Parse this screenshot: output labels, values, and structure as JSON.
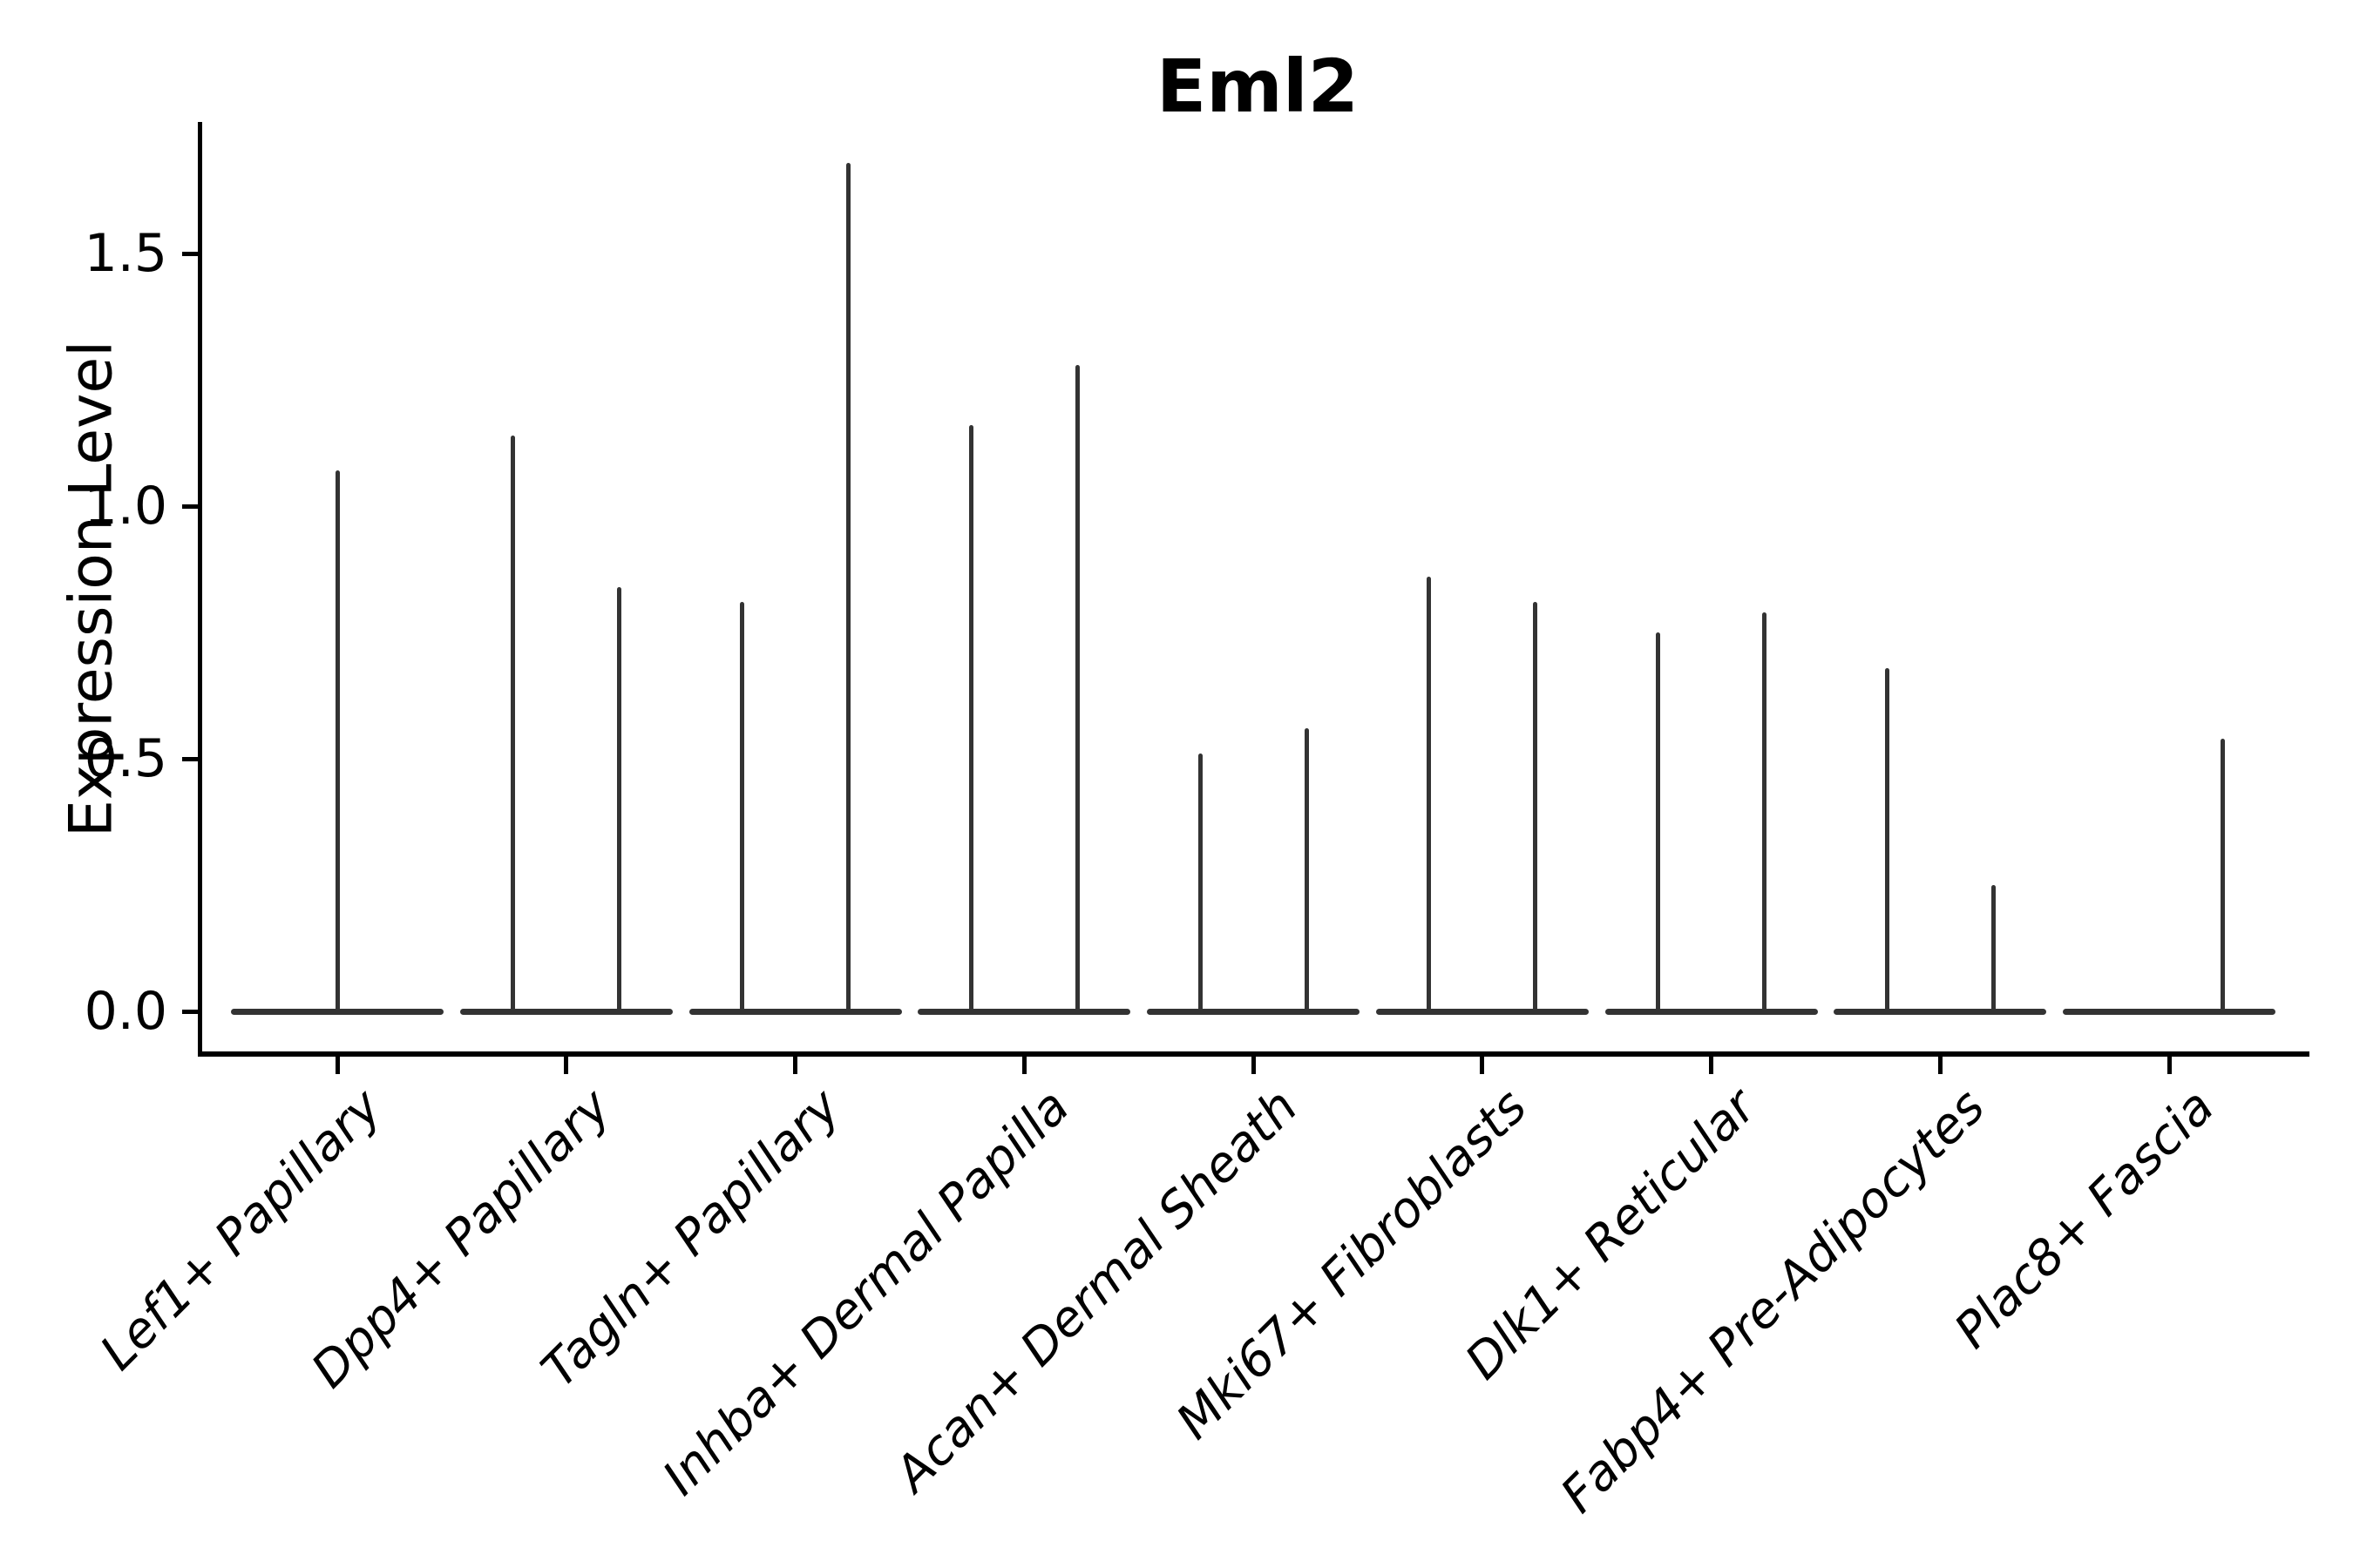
{
  "title": "Eml2",
  "y_axis": {
    "label": "Expression Level",
    "tick_labels": [
      "0.0",
      "0.5",
      "1.0",
      "1.5"
    ],
    "tick_values": [
      0.0,
      0.5,
      1.0,
      1.5
    ]
  },
  "chart_data": {
    "type": "violin",
    "title": "Eml2",
    "xlabel": "",
    "ylabel": "Expression Level",
    "ylim": [
      0,
      1.76
    ],
    "yticks": [
      0.0,
      0.5,
      1.0,
      1.5
    ],
    "grid": false,
    "legend": "none",
    "x_tick_rotation_deg": 45,
    "x_tick_style": "italic",
    "violin_shape": "thin spike with flat wide base at 0",
    "categories": [
      "Lef1+ Papillary",
      "Dpp4+ Papillary",
      "Tagln+ Papillary",
      "Inhba+ Dermal Papilla",
      "Acan+ Dermal Sheath",
      "Mki67+ Fibroblasts",
      "Dlk1+ Reticular",
      "Fabp4+ Pre-Adipocytes",
      "Plac8+ Fascia"
    ],
    "groups": [
      {
        "category": "Lef1+ Papillary",
        "violins": [
          {
            "position": "center",
            "max_expression": 1.07
          }
        ]
      },
      {
        "category": "Dpp4+ Papillary",
        "violins": [
          {
            "position": "left",
            "max_expression": 1.14
          },
          {
            "position": "right",
            "max_expression": 0.84
          }
        ]
      },
      {
        "category": "Tagln+ Papillary",
        "violins": [
          {
            "position": "left",
            "max_expression": 0.81
          },
          {
            "position": "right",
            "max_expression": 1.68
          }
        ]
      },
      {
        "category": "Inhba+ Dermal Papilla",
        "violins": [
          {
            "position": "left",
            "max_expression": 1.16
          },
          {
            "position": "right",
            "max_expression": 1.28
          }
        ]
      },
      {
        "category": "Acan+ Dermal Sheath",
        "violins": [
          {
            "position": "left",
            "max_expression": 0.51
          },
          {
            "position": "right",
            "max_expression": 0.56
          }
        ]
      },
      {
        "category": "Mki67+ Fibroblasts",
        "violins": [
          {
            "position": "left",
            "max_expression": 0.86
          },
          {
            "position": "right",
            "max_expression": 0.81
          }
        ]
      },
      {
        "category": "Dlk1+ Reticular",
        "violins": [
          {
            "position": "left",
            "max_expression": 0.75
          },
          {
            "position": "right",
            "max_expression": 0.79
          }
        ]
      },
      {
        "category": "Fabp4+ Pre-Adipocytes",
        "violins": [
          {
            "position": "left",
            "max_expression": 0.68
          },
          {
            "position": "right",
            "max_expression": 0.25
          }
        ]
      },
      {
        "category": "Plac8+ Fascia",
        "violins": [
          {
            "position": "left",
            "max_expression": 0.0
          },
          {
            "position": "right",
            "max_expression": 0.54
          }
        ]
      }
    ],
    "colors": {
      "violin": "#333333",
      "axis": "#000000",
      "text": "#000000",
      "background": "#ffffff"
    }
  }
}
